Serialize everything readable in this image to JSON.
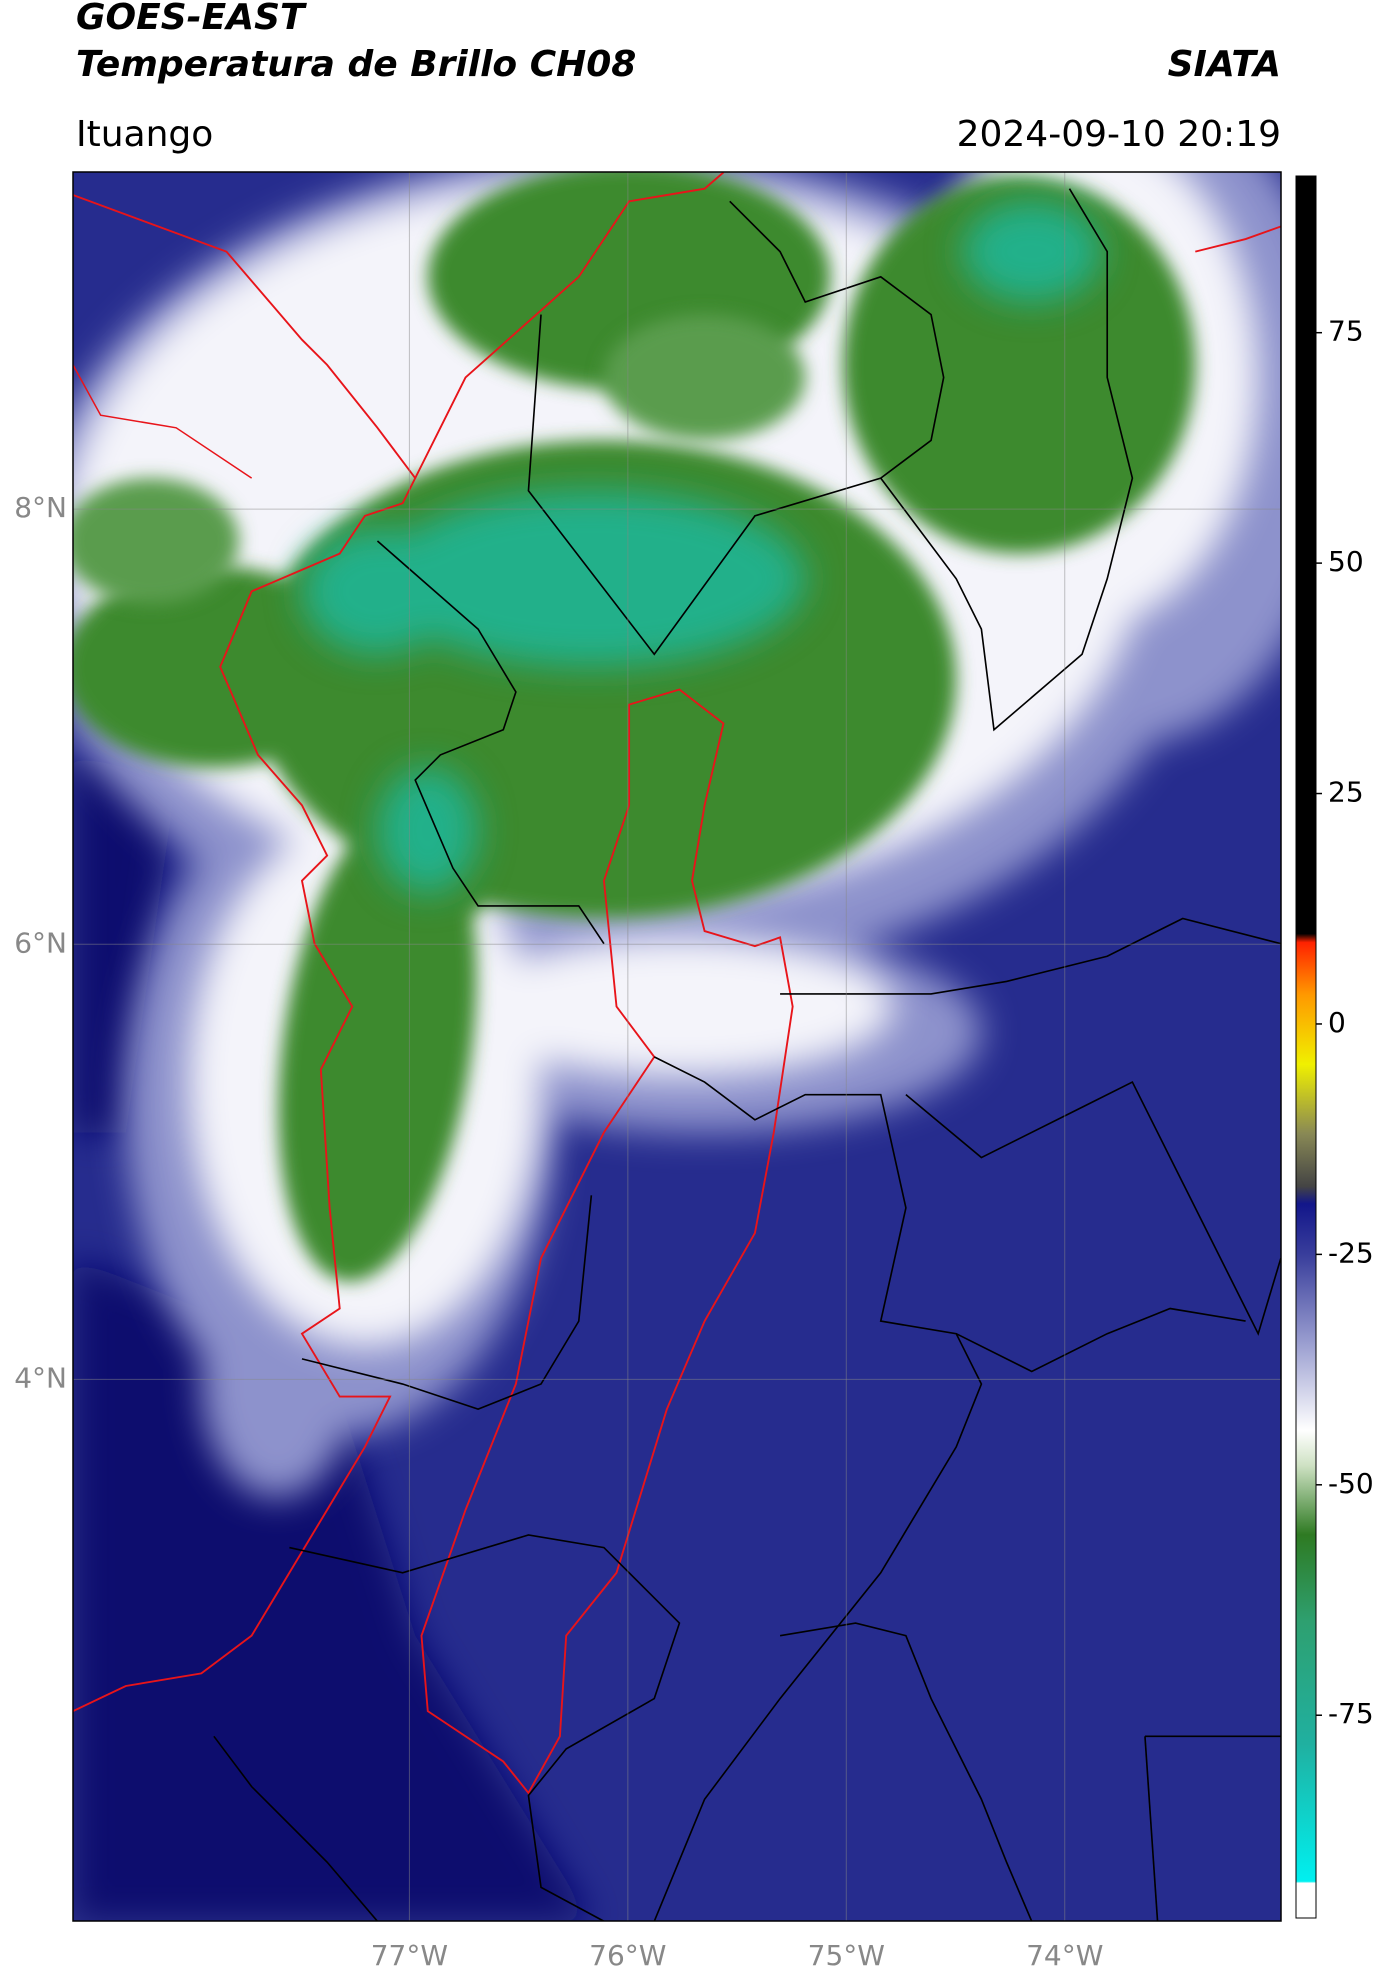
{
  "header": {
    "title": "GOES-EAST",
    "subtitle": "Temperatura de Brillo CH08",
    "source": "SIATA",
    "location": "Ituango",
    "datetime": "2024-09-10 20:19"
  },
  "map": {
    "latlim": [
      1.51,
      9.55
    ],
    "lonlim": [
      -78.54,
      -73.01
    ],
    "latticks": [
      {
        "value": 4,
        "label": "4°N"
      },
      {
        "value": 6,
        "label": "6°N"
      },
      {
        "value": 8,
        "label": "8°N"
      }
    ],
    "lonticks": [
      {
        "value": -77,
        "label": "77°W"
      },
      {
        "value": -76,
        "label": "76°W"
      },
      {
        "value": -75,
        "label": "75°W"
      },
      {
        "value": -74,
        "label": "74°W"
      }
    ],
    "grid": true
  },
  "colorbar": {
    "lim": [
      -97,
      92
    ],
    "ticks": [
      75,
      50,
      25,
      0,
      -25,
      -50,
      -75
    ]
  }
}
